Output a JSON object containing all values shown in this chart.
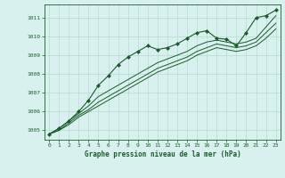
{
  "title": "",
  "xlabel": "Graphe pression niveau de la mer (hPa)",
  "ylabel": "",
  "background_color": "#d8f0ee",
  "grid_color": "#b8d8d4",
  "line_color": "#1a5c2a",
  "xlim": [
    -0.5,
    23.5
  ],
  "ylim": [
    1004.5,
    1011.7
  ],
  "yticks": [
    1005,
    1006,
    1007,
    1008,
    1009,
    1010,
    1011
  ],
  "xticks": [
    0,
    1,
    2,
    3,
    4,
    5,
    6,
    7,
    8,
    9,
    10,
    11,
    12,
    13,
    14,
    15,
    16,
    17,
    18,
    19,
    20,
    21,
    22,
    23
  ],
  "series": [
    {
      "x": [
        0,
        1,
        2,
        3,
        4,
        5,
        6,
        7,
        8,
        9,
        10,
        11,
        12,
        13,
        14,
        15,
        16,
        17,
        18,
        19,
        20,
        21,
        22,
        23
      ],
      "y": [
        1004.8,
        1005.1,
        1005.5,
        1006.0,
        1006.6,
        1007.4,
        1007.9,
        1008.5,
        1008.9,
        1009.2,
        1009.5,
        1009.3,
        1009.4,
        1009.6,
        1009.9,
        1010.2,
        1010.3,
        1009.9,
        1009.85,
        1009.5,
        1010.2,
        1011.0,
        1011.1,
        1011.4
      ],
      "marker": "D",
      "markersize": 2.0,
      "lw": 0.8
    },
    {
      "x": [
        0,
        1,
        2,
        3,
        4,
        5,
        6,
        7,
        8,
        9,
        10,
        11,
        12,
        13,
        14,
        15,
        16,
        17,
        18,
        19,
        20,
        21,
        22,
        23
      ],
      "y": [
        1004.8,
        1005.1,
        1005.5,
        1005.9,
        1006.3,
        1006.8,
        1007.1,
        1007.4,
        1007.7,
        1008.0,
        1008.3,
        1008.6,
        1008.8,
        1009.0,
        1009.2,
        1009.5,
        1009.7,
        1009.8,
        1009.7,
        1009.6,
        1009.7,
        1009.9,
        1010.5,
        1011.1
      ],
      "marker": null,
      "markersize": 0,
      "lw": 0.7
    },
    {
      "x": [
        0,
        1,
        2,
        3,
        4,
        5,
        6,
        7,
        8,
        9,
        10,
        11,
        12,
        13,
        14,
        15,
        16,
        17,
        18,
        19,
        20,
        21,
        22,
        23
      ],
      "y": [
        1004.8,
        1005.0,
        1005.4,
        1005.8,
        1006.1,
        1006.5,
        1006.8,
        1007.1,
        1007.4,
        1007.7,
        1008.0,
        1008.3,
        1008.5,
        1008.7,
        1008.9,
        1009.2,
        1009.4,
        1009.6,
        1009.5,
        1009.4,
        1009.5,
        1009.7,
        1010.2,
        1010.7
      ],
      "marker": null,
      "markersize": 0,
      "lw": 0.7
    },
    {
      "x": [
        0,
        1,
        2,
        3,
        4,
        5,
        6,
        7,
        8,
        9,
        10,
        11,
        12,
        13,
        14,
        15,
        16,
        17,
        18,
        19,
        20,
        21,
        22,
        23
      ],
      "y": [
        1004.8,
        1005.0,
        1005.3,
        1005.7,
        1006.0,
        1006.3,
        1006.6,
        1006.9,
        1007.2,
        1007.5,
        1007.8,
        1008.1,
        1008.3,
        1008.5,
        1008.7,
        1009.0,
        1009.2,
        1009.4,
        1009.3,
        1009.2,
        1009.3,
        1009.5,
        1009.9,
        1010.4
      ],
      "marker": null,
      "markersize": 0,
      "lw": 0.7
    }
  ]
}
